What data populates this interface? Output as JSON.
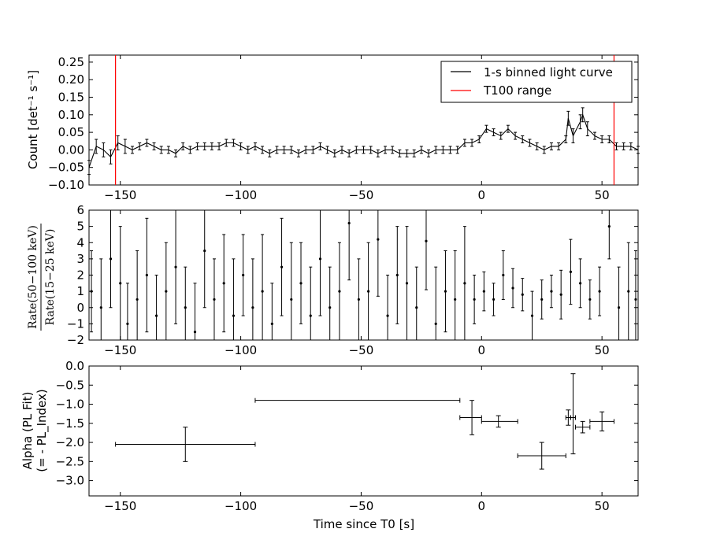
{
  "figure": {
    "xlabel": "Time since T0 [s]",
    "panel1": {
      "ylabel": "Count [det⁻¹ s⁻¹]",
      "legend": {
        "lightcurve": "1-s binned light curve",
        "t100": "T100 range"
      }
    },
    "panel2": {
      "ylabel_num": "Rate(50−100 keV)",
      "ylabel_den": "Rate(15−25 keV)"
    },
    "panel3": {
      "ylabel_line1": "Alpha (PL Fit)",
      "ylabel_line2": "(= - PL_Index)"
    }
  },
  "colors": {
    "lightcurve": "#000000",
    "t100": "#ff0000"
  },
  "chart_data": [
    {
      "type": "line",
      "panel": "light curve",
      "xlim": [
        -163,
        65
      ],
      "ylim": [
        -0.1,
        0.27
      ],
      "yticks": [
        -0.1,
        -0.05,
        0.0,
        0.05,
        0.1,
        0.15,
        0.2,
        0.25
      ],
      "xticks": [
        -150,
        -100,
        -50,
        0,
        50
      ],
      "legend_position": "top-right",
      "t100_range": [
        -152,
        55
      ],
      "series": [
        {
          "name": "1-s binned light curve",
          "error_bars": true,
          "x": [
            -163,
            -160,
            -157,
            -154,
            -151,
            -148,
            -145,
            -142,
            -139,
            -136,
            -133,
            -130,
            -127,
            -124,
            -121,
            -118,
            -115,
            -112,
            -109,
            -106,
            -103,
            -100,
            -97,
            -94,
            -91,
            -88,
            -85,
            -82,
            -79,
            -76,
            -73,
            -70,
            -67,
            -64,
            -61,
            -58,
            -55,
            -52,
            -49,
            -46,
            -43,
            -40,
            -37,
            -34,
            -31,
            -28,
            -25,
            -22,
            -19,
            -16,
            -13,
            -10,
            -7,
            -4,
            -1,
            2,
            5,
            8,
            11,
            14,
            17,
            20,
            23,
            26,
            29,
            32,
            35,
            36,
            38,
            41,
            42,
            44,
            47,
            50,
            53,
            56,
            59,
            62,
            65
          ],
          "y": [
            -0.05,
            0.01,
            0.0,
            -0.02,
            0.02,
            0.01,
            0.0,
            0.01,
            0.02,
            0.01,
            0.0,
            0.0,
            -0.01,
            0.01,
            0.0,
            0.01,
            0.01,
            0.01,
            0.01,
            0.02,
            0.02,
            0.01,
            0.0,
            0.01,
            0.0,
            -0.01,
            0.0,
            0.0,
            0.0,
            -0.01,
            0.0,
            0.0,
            0.01,
            0.0,
            -0.01,
            0.0,
            -0.01,
            0.0,
            0.0,
            0.0,
            -0.01,
            0.0,
            0.0,
            -0.01,
            -0.01,
            -0.01,
            0.0,
            -0.01,
            0.0,
            0.0,
            0.0,
            0.0,
            0.02,
            0.02,
            0.03,
            0.06,
            0.05,
            0.04,
            0.06,
            0.04,
            0.03,
            0.02,
            0.01,
            0.0,
            0.01,
            0.01,
            0.03,
            0.09,
            0.04,
            0.08,
            0.1,
            0.06,
            0.04,
            0.03,
            0.03,
            0.01,
            0.01,
            0.01,
            0.0
          ],
          "yerr": [
            0.02,
            0.02,
            0.02,
            0.02,
            0.02,
            0.02,
            0.01,
            0.01,
            0.01,
            0.01,
            0.01,
            0.01,
            0.01,
            0.01,
            0.01,
            0.01,
            0.01,
            0.01,
            0.01,
            0.01,
            0.01,
            0.01,
            0.01,
            0.01,
            0.01,
            0.01,
            0.01,
            0.01,
            0.01,
            0.01,
            0.01,
            0.01,
            0.01,
            0.01,
            0.01,
            0.01,
            0.01,
            0.01,
            0.01,
            0.01,
            0.01,
            0.01,
            0.01,
            0.01,
            0.01,
            0.01,
            0.01,
            0.01,
            0.01,
            0.01,
            0.01,
            0.01,
            0.01,
            0.01,
            0.01,
            0.01,
            0.01,
            0.01,
            0.01,
            0.01,
            0.01,
            0.01,
            0.01,
            0.01,
            0.01,
            0.01,
            0.01,
            0.02,
            0.02,
            0.02,
            0.02,
            0.02,
            0.01,
            0.01,
            0.01,
            0.01,
            0.01,
            0.01,
            0.01
          ]
        }
      ]
    },
    {
      "type": "scatter",
      "panel": "hardness ratio",
      "xlim": [
        -163,
        65
      ],
      "ylim": [
        -2,
        6
      ],
      "yticks": [
        -2,
        -1,
        0,
        1,
        2,
        3,
        4,
        5,
        6
      ],
      "xticks": [
        -150,
        -100,
        -50,
        0,
        50
      ],
      "series": [
        {
          "error_bars": true,
          "x": [
            -162,
            -158,
            -154,
            -150,
            -147,
            -143,
            -139,
            -135,
            -131,
            -127,
            -123,
            -119,
            -115,
            -111,
            -107,
            -103,
            -99,
            -95,
            -91,
            -87,
            -83,
            -79,
            -75,
            -71,
            -67,
            -63,
            -59,
            -55,
            -51,
            -47,
            -43,
            -39,
            -35,
            -31,
            -27,
            -23,
            -19,
            -15,
            -11,
            -7,
            -3,
            1,
            5,
            9,
            13,
            17,
            21,
            25,
            29,
            33,
            37,
            41,
            45,
            49,
            53,
            57,
            61,
            64
          ],
          "y": [
            1.0,
            0.0,
            3.0,
            1.5,
            -1.0,
            0.5,
            2.0,
            -0.5,
            1.0,
            2.5,
            0.0,
            -1.5,
            3.5,
            0.5,
            1.5,
            -0.5,
            2.0,
            0.0,
            1.0,
            -1.0,
            2.5,
            0.5,
            1.5,
            -0.5,
            3.0,
            0.0,
            1.0,
            5.2,
            0.5,
            1.0,
            4.2,
            -0.5,
            2.0,
            1.5,
            0.0,
            4.1,
            -1.0,
            1.0,
            0.5,
            1.5,
            0.5,
            1.0,
            0.5,
            2.0,
            1.2,
            0.8,
            -0.5,
            0.5,
            1.0,
            0.8,
            2.2,
            1.5,
            0.5,
            1.0,
            5.0,
            0.0,
            1.0,
            0.5
          ],
          "yerr": [
            2.5,
            3.0,
            3.0,
            3.5,
            2.5,
            3.0,
            3.5,
            2.5,
            3.0,
            3.5,
            2.5,
            3.0,
            3.5,
            2.5,
            3.0,
            3.5,
            2.5,
            3.0,
            3.5,
            2.5,
            3.0,
            3.5,
            2.5,
            3.0,
            3.5,
            2.5,
            3.0,
            3.5,
            2.5,
            3.0,
            3.5,
            2.5,
            3.0,
            3.5,
            2.5,
            3.0,
            3.5,
            2.5,
            3.0,
            3.5,
            1.5,
            1.2,
            1.0,
            1.5,
            1.2,
            1.0,
            1.5,
            1.2,
            1.0,
            1.5,
            2.0,
            1.5,
            1.2,
            1.5,
            2.0,
            2.5,
            3.0,
            3.0
          ]
        }
      ]
    },
    {
      "type": "scatter",
      "panel": "alpha",
      "xlim": [
        -163,
        65
      ],
      "ylim": [
        -3.4,
        0.0
      ],
      "yticks": [
        -3.0,
        -2.5,
        -2.0,
        -1.5,
        -1.0,
        -0.5,
        0.0
      ],
      "xticks": [
        -150,
        -100,
        -50,
        0,
        50
      ],
      "series": [
        {
          "error_bars": true,
          "points": [
            {
              "x": -123,
              "xlo": -152,
              "xhi": -94,
              "y": -2.05,
              "ylo": -2.5,
              "yhi": -1.6
            },
            {
              "x": -51,
              "xlo": -94,
              "xhi": -9,
              "y": -0.9,
              "ylo": -0.9,
              "yhi": -0.9
            },
            {
              "x": -4,
              "xlo": -9,
              "xhi": 0,
              "y": -1.35,
              "ylo": -1.8,
              "yhi": -0.9
            },
            {
              "x": 7,
              "xlo": 0,
              "xhi": 15,
              "y": -1.45,
              "ylo": -1.6,
              "yhi": -1.3
            },
            {
              "x": 25,
              "xlo": 15,
              "xhi": 35,
              "y": -2.35,
              "ylo": -2.7,
              "yhi": -2.0
            },
            {
              "x": 36,
              "xlo": 35,
              "xhi": 37,
              "y": -1.35,
              "ylo": -1.55,
              "yhi": -1.15
            },
            {
              "x": 38,
              "xlo": 37,
              "xhi": 39,
              "y": -1.35,
              "ylo": -2.3,
              "yhi": -0.2
            },
            {
              "x": 42,
              "xlo": 39,
              "xhi": 45,
              "y": -1.6,
              "ylo": -1.75,
              "yhi": -1.45
            },
            {
              "x": 50,
              "xlo": 45,
              "xhi": 55,
              "y": -1.45,
              "ylo": -1.7,
              "yhi": -1.2
            }
          ]
        }
      ]
    }
  ]
}
